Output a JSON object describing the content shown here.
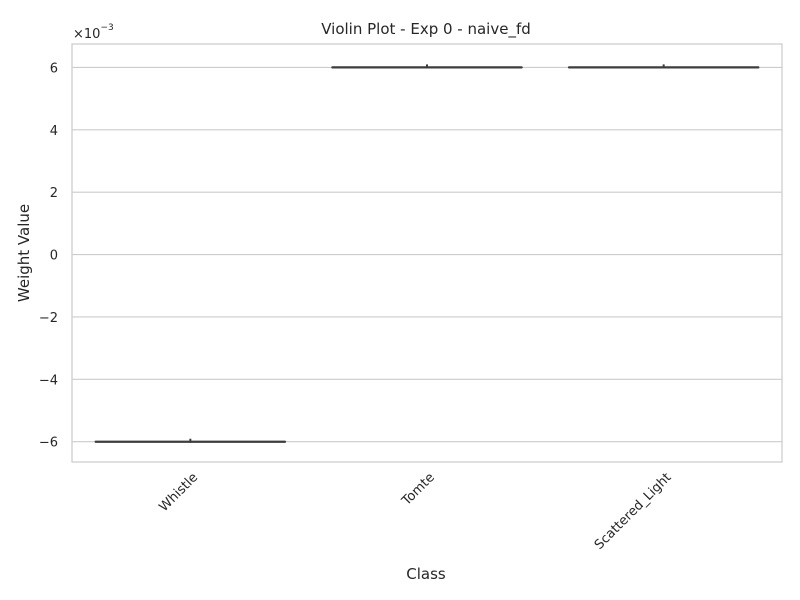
{
  "chart_data": {
    "type": "violin",
    "title": "Violin Plot - Exp 0 - naive_fd",
    "xlabel": "Class",
    "ylabel": "Weight Value",
    "y_scale_label": "×10",
    "y_scale_exponent": "−3",
    "categories": [
      "Whistle",
      "Tomte",
      "Scattered_Light"
    ],
    "values": [
      -0.006,
      0.006,
      0.006
    ],
    "ylim": [
      -0.00665,
      0.00675
    ],
    "yticks": [
      -0.006,
      -0.004,
      -0.002,
      0,
      0.002,
      0.004,
      0.006
    ],
    "ytick_labels": [
      "−6",
      "−4",
      "−2",
      "0",
      "2",
      "4",
      "6"
    ],
    "grid": "horizontal",
    "colors": {
      "grid": "#cccccc",
      "spine": "#cccccc",
      "mark": "#3d3d3d",
      "text": "#262626"
    }
  }
}
